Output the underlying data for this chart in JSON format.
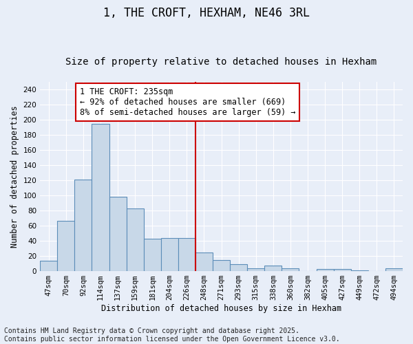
{
  "title": "1, THE CROFT, HEXHAM, NE46 3RL",
  "subtitle": "Size of property relative to detached houses in Hexham",
  "xlabel": "Distribution of detached houses by size in Hexham",
  "ylabel": "Number of detached properties",
  "categories": [
    "47sqm",
    "70sqm",
    "92sqm",
    "114sqm",
    "137sqm",
    "159sqm",
    "181sqm",
    "204sqm",
    "226sqm",
    "248sqm",
    "271sqm",
    "293sqm",
    "315sqm",
    "338sqm",
    "360sqm",
    "382sqm",
    "405sqm",
    "427sqm",
    "449sqm",
    "472sqm",
    "494sqm"
  ],
  "values": [
    14,
    66,
    121,
    195,
    98,
    83,
    43,
    44,
    44,
    25,
    15,
    9,
    4,
    7,
    4,
    0,
    3,
    3,
    1,
    0,
    4
  ],
  "bar_color": "#c8d8e8",
  "bar_edge_color": "#5b8db8",
  "background_color": "#e8eef8",
  "grid_color": "#ffffff",
  "vline_x": 8.5,
  "vline_color": "#cc0000",
  "annotation_text": "1 THE CROFT: 235sqm\n← 92% of detached houses are smaller (669)\n8% of semi-detached houses are larger (59) →",
  "annotation_box_color": "#ffffff",
  "annotation_box_edge_color": "#cc0000",
  "ylim": [
    0,
    250
  ],
  "yticks": [
    0,
    20,
    40,
    60,
    80,
    100,
    120,
    140,
    160,
    180,
    200,
    220,
    240
  ],
  "footnote": "Contains HM Land Registry data © Crown copyright and database right 2025.\nContains public sector information licensed under the Open Government Licence v3.0.",
  "title_fontsize": 12,
  "subtitle_fontsize": 10,
  "annotation_fontsize": 8.5,
  "footnote_fontsize": 7,
  "tick_fontsize": 7.5,
  "ylabel_fontsize": 8.5,
  "xlabel_fontsize": 8.5
}
